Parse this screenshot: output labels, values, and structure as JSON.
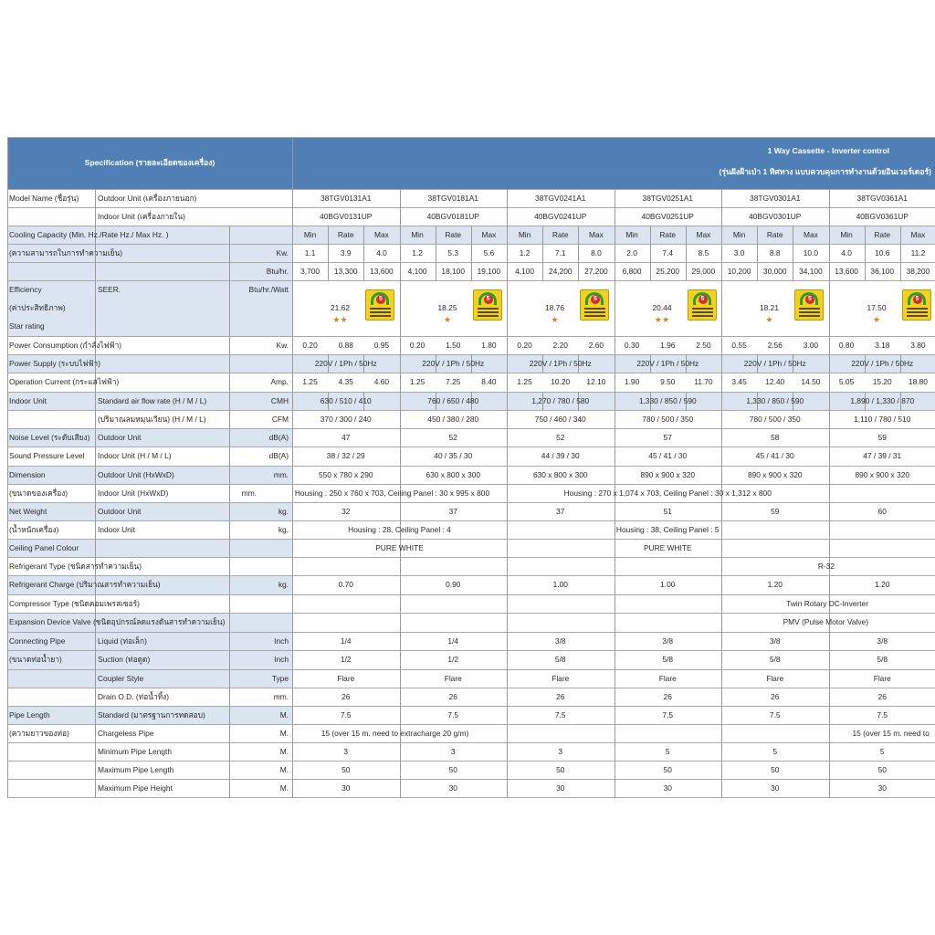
{
  "header": {
    "spec_label": "Specification (รายละเอียดของเครื่อง)",
    "title_line1": "1 Way Cassette - Inverter control",
    "title_line2": "(รุ่นฝังฝ้าเป่า 1 ทิศทาง แบบควบคุมการทำงานด้วยอินเวอร์เตอร์)"
  },
  "models": [
    {
      "outdoor": "38TGV0131A1",
      "indoor": "40BGV0131UP"
    },
    {
      "outdoor": "38TGV0181A1",
      "indoor": "40BGV0181UP"
    },
    {
      "outdoor": "38TGV0241A1",
      "indoor": "40BGV0241UP"
    },
    {
      "outdoor": "38TGV0251A1",
      "indoor": "40BGV0251UP"
    },
    {
      "outdoor": "38TGV0301A1",
      "indoor": "40BGV0301UP"
    },
    {
      "outdoor": "38TGV0361A1",
      "indoor": "40BGV0361UP"
    }
  ],
  "labels": {
    "model_name": "Model Name (ชื่อรุ่น)",
    "outdoor_unit": "Outdoor Unit (เครื่องภายนอก)",
    "indoor_unit": "Indoor Unit (เครื่องภายใน)",
    "cooling_capacity": "Cooling Capacity (Min. Hz./Rate Hz./ Max Hz. )",
    "cooling_capacity_th": "(ความสามารถในการทำความเย็น)",
    "kw": "Kw.",
    "btu": "Btu/hr.",
    "efficiency": "Efficiency",
    "efficiency_th": "(ค่าประสิทธิภาพ)",
    "star_rating": "Star rating",
    "seer": "SEER.",
    "btu_watt": "Btu/hr./Watt",
    "power_consumption": "Power Consumption (กำลังไฟฟ้า)",
    "power_supply": "Power Supply (ระบบไฟฟ้า)",
    "operation_current": "Operation Current (กระแสไฟฟ้า)",
    "amp": "Amp.",
    "indoor_unit_row": "Indoor Unit",
    "std_air_flow": "Standard air flow rate (H / M / L)",
    "air_flow_th": "(ปริมาณลมหมุนเวียน) (H / M / L)",
    "cmh": "CMH",
    "cfm": "CFM",
    "noise_level": "Noise Level (ระดับเสียง)",
    "sound_pressure": "Sound Pressure Level",
    "outdoor_unit_short": "Outdoor Unit",
    "indoor_unit_hml": "Indoor Unit (H / M / L)",
    "dba": "dB(A)",
    "dimension": "Dimension",
    "dimension_th": "(ขนาดของเครื่อง)",
    "outdoor_hwd": "Outdoor Unit (HxWxD)",
    "indoor_hwd": "Indoor Unit (HxWxD)",
    "mm": "mm.",
    "net_weight": "Net Weight",
    "net_weight_th": "(น้ำหนักเครื่อง)",
    "indoor_unit_short": "Indoor Unit",
    "kg": "kg.",
    "ceiling_panel_colour": "Ceiling Panel Colour",
    "refrigerant_type": "Refrigerant Type (ชนิดสารทำความเย็น)",
    "refrigerant_charge": "Refrigerant Charge (ปริมาณสารทำความเย็น)",
    "compressor_type": "Compressor Type (ชนิดคอมเพรสเซอร์)",
    "expansion_valve": "Expansion Device Valve (ชนิดอุปกรณ์ลดแรงดันสารทำความเย็น)",
    "connecting_pipe": "Connecting Pipe",
    "connecting_pipe_th": "(ขนาดท่อน้ำยา)",
    "liquid": "Liquid (ท่อเล็ก)",
    "suction": "Suction (ท่อดูด)",
    "coupler_style": "Coupler Style",
    "drain_od": "Drain O.D. (ท่อน้ำทิ้ง)",
    "inch": "Inch",
    "type": "Type",
    "pipe_length": "Pipe Length",
    "pipe_length_th": "(ความยาวของท่อ)",
    "standard": "Standard (มาตรฐานการทดสอบ)",
    "chargeless_pipe": "Chargeless Pipe",
    "min_pipe": "Minimum Pipe Length",
    "max_pipe": "Maximum Pipe Length",
    "max_height": "Maximum Pipe Height",
    "m": "M.",
    "min": "Min",
    "rate": "Rate",
    "max": "Max"
  },
  "cooling_kw": [
    [
      "1.1",
      "3.9",
      "4.0"
    ],
    [
      "1.2",
      "5.3",
      "5.6"
    ],
    [
      "1.2",
      "7.1",
      "8.0"
    ],
    [
      "2.0",
      "7.4",
      "8.5"
    ],
    [
      "3.0",
      "8.8",
      "10.0"
    ],
    [
      "4.0",
      "10.6",
      "11.2"
    ]
  ],
  "cooling_btu": [
    [
      "3,700",
      "13,300",
      "13,600"
    ],
    [
      "4,100",
      "18,100",
      "19,100"
    ],
    [
      "4,100",
      "24,200",
      "27,200"
    ],
    [
      "6,800",
      "25,200",
      "29,000"
    ],
    [
      "10,200",
      "30,000",
      "34,100"
    ],
    [
      "13,600",
      "36,100",
      "38,200"
    ]
  ],
  "seer": [
    "21.62",
    "18.25",
    "18.76",
    "20.44",
    "18.21",
    "17.50"
  ],
  "stars": [
    "★★",
    "★",
    "★",
    "★★",
    "★",
    "★"
  ],
  "badge_number": "5",
  "power_kw": [
    [
      "0.20",
      "0.88",
      "0.95"
    ],
    [
      "0.20",
      "1.50",
      "1.80"
    ],
    [
      "0.20",
      "2.20",
      "2.60"
    ],
    [
      "0.30",
      "1.96",
      "2.50"
    ],
    [
      "0.55",
      "2.56",
      "3.00"
    ],
    [
      "0.80",
      "3.18",
      "3.80"
    ]
  ],
  "power_supply": [
    "220V / 1Ph / 50Hz",
    "220V / 1Ph / 50Hz",
    "220V / 1Ph / 50Hz",
    "220V / 1Ph / 50Hz",
    "220V / 1Ph / 50Hz",
    "220V / 1Ph / 50Hz"
  ],
  "current": [
    [
      "1.25",
      "4.35",
      "4.60"
    ],
    [
      "1.25",
      "7.25",
      "8.40"
    ],
    [
      "1.25",
      "10.20",
      "12.10"
    ],
    [
      "1.90",
      "9.50",
      "11.70"
    ],
    [
      "3.45",
      "12.40",
      "14.50"
    ],
    [
      "5.05",
      "15.20",
      "18.80"
    ]
  ],
  "airflow_cmh": [
    "630 / 510 / 410",
    "760 / 650 / 480",
    "1,270 / 780 / 580",
    "1,330 / 850 / 590",
    "1,330 / 850 / 590",
    "1,890 / 1,330 / 870"
  ],
  "airflow_cfm": [
    "370 / 300 / 240",
    "450 / 380 / 280",
    "750 / 460 / 340",
    "780 / 500 / 350",
    "780 / 500 / 350",
    "1,110 / 780 / 510"
  ],
  "noise_outdoor": [
    "47",
    "52",
    "52",
    "57",
    "58",
    "59"
  ],
  "noise_indoor": [
    "38 / 32 / 29",
    "40 / 35 / 30",
    "44 / 39 / 30",
    "45 / 41 / 30",
    "45 / 41 / 30",
    "47 / 39 / 31"
  ],
  "dim_outdoor": [
    "550 x 780 x 290",
    "630 x 800 x 300",
    "630 x 800 x 300",
    "890 x 900 x 320",
    "890 x 900 x 320",
    "890 x 900 x 320"
  ],
  "dim_indoor_a": "Housing : 250 x 760 x 703, Ceiling Panel : 30 x 995 x 800",
  "dim_indoor_b": "Housing : 270 x 1,074 x 703, Ceiling Panel : 30 x 1,312 x 800",
  "weight_outdoor": [
    "32",
    "37",
    "37",
    "51",
    "59",
    "60"
  ],
  "weight_indoor_a": "Housing : 28, Ceiling Panel : 4",
  "weight_indoor_b": "Housing : 38, Ceiling Panel : 5",
  "panel_colour_a": "PURE WHITE",
  "panel_colour_b": "PURE WHITE",
  "refrigerant_type": "R-32",
  "refrigerant_charge": [
    "0.70",
    "0.90",
    "1.00",
    "1.00",
    "1.20",
    "1.20"
  ],
  "compressor_type": "Twin Rotary DC-Inverter",
  "expansion_valve": "PMV (Pulse Motor Valve)",
  "pipe_liquid": [
    "1/4",
    "1/4",
    "3/8",
    "3/8",
    "3/8",
    "3/8"
  ],
  "pipe_suction": [
    "1/2",
    "1/2",
    "5/8",
    "5/8",
    "5/8",
    "5/8"
  ],
  "coupler": [
    "Flare",
    "Flare",
    "Flare",
    "Flare",
    "Flare",
    "Flare"
  ],
  "drain": [
    "26",
    "26",
    "26",
    "26",
    "26",
    "26"
  ],
  "pipe_standard": [
    "7.5",
    "7.5",
    "7.5",
    "7.5",
    "7.5",
    "7.5"
  ],
  "chargeless_a": "15 (over 15 m. need to extracharge 20 g/m)",
  "chargeless_b": "15 (over 15 m. need to",
  "pipe_min": [
    "3",
    "3",
    "3",
    "5",
    "5",
    "5"
  ],
  "pipe_max": [
    "50",
    "50",
    "50",
    "50",
    "50",
    "50"
  ],
  "pipe_height": [
    "30",
    "30",
    "30",
    "30",
    "30",
    "30"
  ]
}
